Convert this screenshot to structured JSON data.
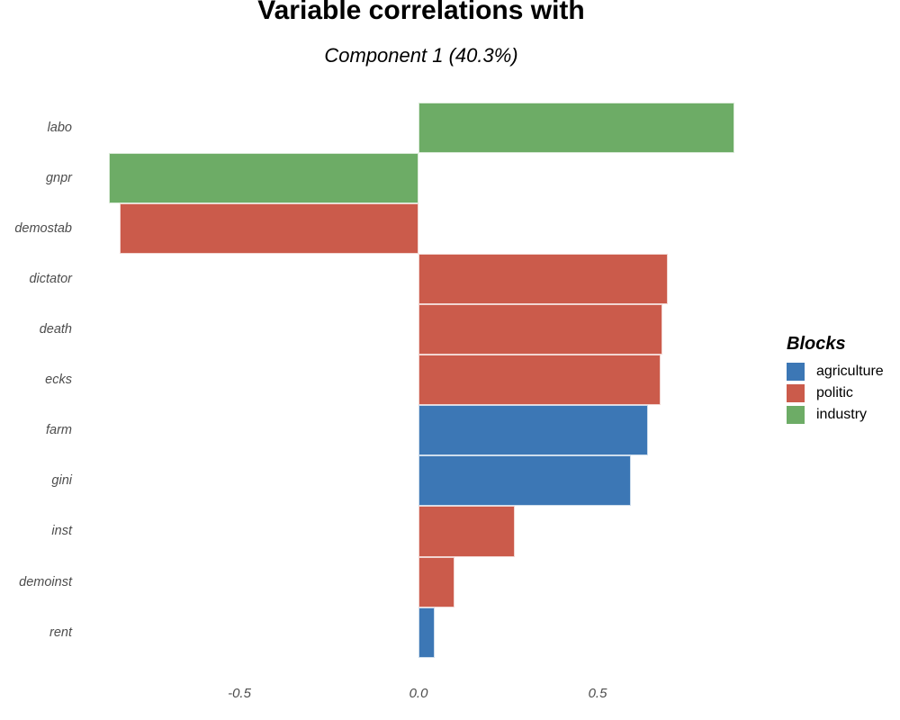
{
  "chart_data": {
    "type": "bar",
    "orientation": "horizontal",
    "title": "Variable correlations with",
    "subtitle": "Component 1 (40.3%)",
    "categories": [
      "labo",
      "gnpr",
      "demostab",
      "dictator",
      "death",
      "ecks",
      "farm",
      "gini",
      "inst",
      "demoinst",
      "rent"
    ],
    "values": [
      0.882,
      -0.864,
      -0.834,
      0.696,
      0.682,
      0.675,
      0.641,
      0.593,
      0.27,
      0.1,
      0.046
    ],
    "blocks": [
      "industry",
      "industry",
      "politic",
      "politic",
      "politic",
      "politic",
      "agriculture",
      "agriculture",
      "politic",
      "politic",
      "agriculture"
    ],
    "x_ticks": [
      {
        "label": "-0.5",
        "value": -0.5
      },
      {
        "label": "0.0",
        "value": 0.0
      },
      {
        "label": "0.5",
        "value": 0.5
      }
    ],
    "xlim": [
      -0.95,
      0.97
    ],
    "grid": false,
    "legend": {
      "title": "Blocks",
      "position": "right",
      "entries": [
        {
          "label": "agriculture",
          "color": "#3C77B5"
        },
        {
          "label": "politic",
          "color": "#CB5B4B"
        },
        {
          "label": "industry",
          "color": "#6DAC66"
        }
      ]
    }
  },
  "colors": {
    "agriculture": "#3C77B5",
    "politic": "#CB5B4B",
    "industry": "#6DAC66",
    "axis_text": "#4d4d4d",
    "background": "#ffffff"
  }
}
